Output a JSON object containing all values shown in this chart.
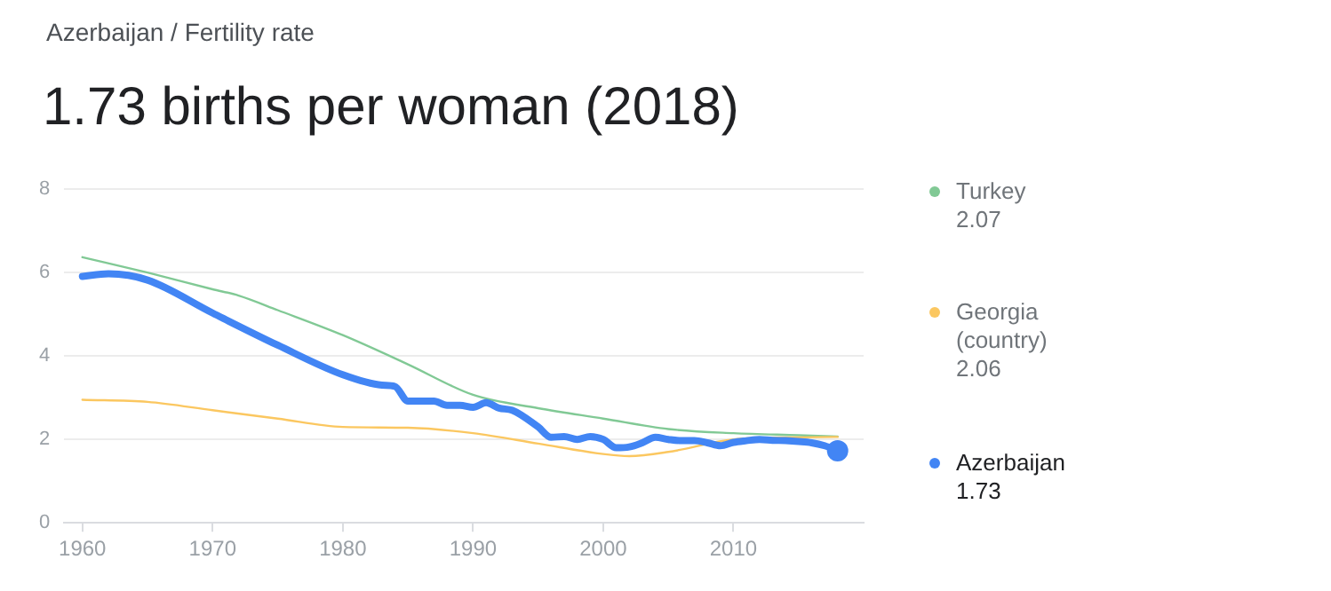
{
  "chart_data": {
    "type": "line",
    "subtitle": "Azerbaijan / Fertility rate",
    "title": "1.73 births per woman (2018)",
    "xlim": [
      1958.6,
      2020
    ],
    "xticks": [
      1960,
      1970,
      1980,
      1990,
      2000,
      2010
    ],
    "ylim": [
      0,
      8
    ],
    "yticks": [
      0,
      2,
      4,
      6,
      8
    ],
    "grid": "y",
    "legend": "right",
    "annotations": [
      "2.07",
      "2.06",
      "1.73"
    ],
    "series": [
      {
        "name": "Turkey",
        "color": "#81c995",
        "x": [
          1960,
          1965,
          1970,
          1972,
          1975,
          1980,
          1985,
          1990,
          1995,
          2000,
          2005,
          2010,
          2015,
          2018
        ],
        "values": [
          6.37,
          6.0,
          5.6,
          5.45,
          5.1,
          4.5,
          3.8,
          3.07,
          2.75,
          2.5,
          2.25,
          2.15,
          2.1,
          2.07
        ]
      },
      {
        "name": "Georgia (country)",
        "color": "#fbc760",
        "x": [
          1960,
          1965,
          1970,
          1975,
          1980,
          1985,
          1990,
          1995,
          2000,
          2002,
          2005,
          2010,
          2015,
          2018
        ],
        "values": [
          2.95,
          2.9,
          2.7,
          2.5,
          2.3,
          2.28,
          2.15,
          1.9,
          1.65,
          1.6,
          1.7,
          2.0,
          2.05,
          2.06
        ]
      },
      {
        "name": "Azerbaijan",
        "color": "#4285f4",
        "x": [
          1960,
          1962,
          1965,
          1970,
          1975,
          1980,
          1983,
          1984,
          1985,
          1987,
          1988,
          1989,
          1990,
          1991,
          1992,
          1993,
          1995,
          1996,
          1997,
          1998,
          1999,
          2000,
          2001,
          2002,
          2003,
          2004,
          2005,
          2006,
          2007,
          2008,
          2009,
          2010,
          2011,
          2012,
          2013,
          2014,
          2015,
          2016,
          2017,
          2018
        ],
        "values": [
          5.91,
          5.97,
          5.82,
          5.03,
          4.26,
          3.55,
          3.3,
          3.27,
          2.92,
          2.92,
          2.82,
          2.82,
          2.77,
          2.88,
          2.75,
          2.7,
          2.3,
          2.05,
          2.07,
          2.0,
          2.07,
          2.0,
          1.8,
          1.82,
          1.92,
          2.05,
          2.0,
          1.97,
          1.97,
          1.92,
          1.85,
          1.93,
          1.97,
          2.0,
          1.98,
          1.97,
          1.95,
          1.92,
          1.85,
          1.73
        ]
      }
    ]
  }
}
